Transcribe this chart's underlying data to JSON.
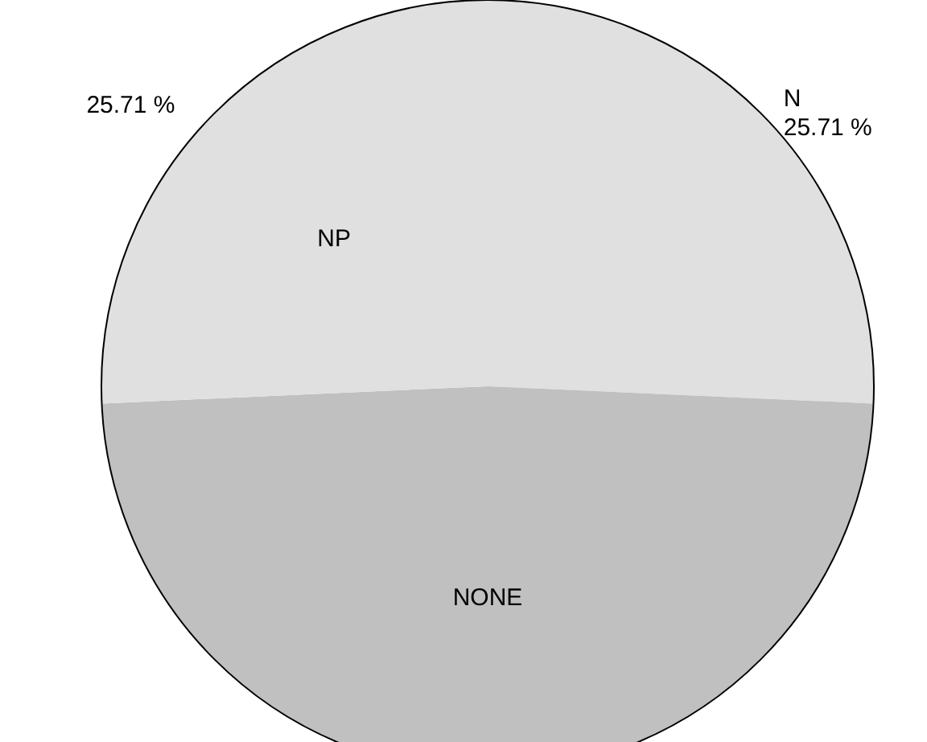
{
  "chart_data": {
    "type": "pie",
    "categories": [
      "NP",
      "NONE",
      "N"
    ],
    "values": [
      25.71,
      48.58,
      25.71
    ],
    "colors": [
      "#e0e0e0",
      "#c0c0c0",
      "#e0e0e0"
    ],
    "value_labels": [
      "25.71 %",
      null,
      "25.71 %"
    ],
    "legend": false
  }
}
